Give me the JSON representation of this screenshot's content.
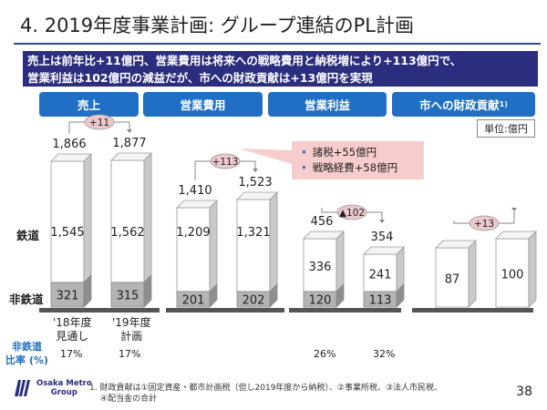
{
  "title": "4. 2019年度事業計画: グループ連結のPL計画",
  "summary": {
    "line1": "売上は前年比+11億円、営業費用は将来への戦略費用と納税増により+113億円で、",
    "line2": "営業利益は102億円の減益だが、市への財政貢献は+13億円を実現"
  },
  "headers": [
    "売上",
    "営業費用",
    "営業利益",
    "市への財政貢献"
  ],
  "header_footnote_mark": "1)",
  "unit": "単位:億円",
  "callout": {
    "items": [
      "諸税+55億円",
      "戦略経費+58億円"
    ]
  },
  "row_labels": {
    "rail": "鉄道",
    "nonrail": "非鉄道"
  },
  "x_labels": [
    {
      "line1": "'18年度",
      "line2": "見通し"
    },
    {
      "line1": "'19年度",
      "line2": "計画"
    }
  ],
  "ratio_label": {
    "line1": "非鉄道",
    "line2": "比率 (%)"
  },
  "colors": {
    "header": "#1f6fc4",
    "summary_bg": "#2b2d7e",
    "bar_front": "#ffffff",
    "bar_side": "#c9c9c9",
    "nonrail_front": "#b4b4b4",
    "ground": "#555555",
    "delta_bubble": "#ecc8cc",
    "callout": "#f7cccc"
  },
  "chart_data": {
    "type": "bar",
    "stacked": true,
    "unit": "億円",
    "categories": [
      "'18年度見通し",
      "'19年度計画"
    ],
    "groups": [
      {
        "name": "売上",
        "total": [
          "1,866",
          "1,877"
        ],
        "rail": [
          "1,545",
          "1,562"
        ],
        "nonrail": [
          "321",
          "315"
        ],
        "rail_values": [
          1545,
          1562
        ],
        "nonrail_values": [
          321,
          315
        ],
        "delta": "+11",
        "nonrail_ratio": [
          "17%",
          "17%"
        ]
      },
      {
        "name": "営業費用",
        "total": [
          "1,410",
          "1,523"
        ],
        "rail": [
          "1,209",
          "1,321"
        ],
        "nonrail": [
          "201",
          "202"
        ],
        "rail_values": [
          1209,
          1321
        ],
        "nonrail_values": [
          201,
          202
        ],
        "delta": "+113",
        "nonrail_ratio": [
          null,
          null
        ]
      },
      {
        "name": "営業利益",
        "total": [
          "456",
          "354"
        ],
        "rail": [
          "336",
          "241"
        ],
        "nonrail": [
          "120",
          "113"
        ],
        "rail_values": [
          336,
          241
        ],
        "nonrail_values": [
          120,
          113
        ],
        "delta": "▲102",
        "nonrail_ratio": [
          "26%",
          "32%"
        ]
      },
      {
        "name": "市への財政貢献",
        "total": [
          null,
          null
        ],
        "rail": [
          "87",
          "100"
        ],
        "nonrail": [
          null,
          null
        ],
        "rail_values": [
          87,
          100
        ],
        "nonrail_values": [
          0,
          0
        ],
        "delta": "+13",
        "nonrail_ratio": [
          null,
          null
        ]
      }
    ]
  },
  "footnote": {
    "line1": "1.  財政貢献は①固定資産・都市計画税（但し2019年度から納税）、②事業所税、③法人市民税、",
    "line2": "④配当金の合計"
  },
  "logo": {
    "line1": "Osaka Metro",
    "line2": "Group"
  },
  "page_number": "38"
}
